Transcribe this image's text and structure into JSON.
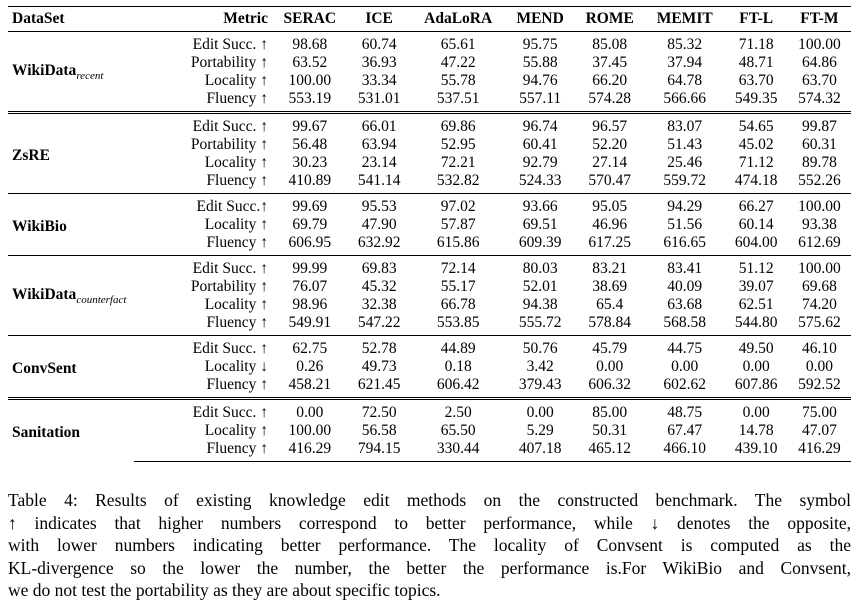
{
  "table": {
    "headers": [
      "DataSet",
      "Metric",
      "SERAC",
      "ICE",
      "AdaLoRA",
      "MEND",
      "ROME",
      "MEMIT",
      "FT-L",
      "FT-M"
    ],
    "groups": [
      {
        "name": "WikiData",
        "subscript": "recent",
        "rows": [
          {
            "metric": "Edit Succ. ↑",
            "values": [
              "98.68",
              "60.74",
              "65.61",
              "95.75",
              "85.08",
              "85.32",
              "71.18",
              "100.00"
            ]
          },
          {
            "metric": "Portability ↑",
            "values": [
              "63.52",
              "36.93",
              "47.22",
              "55.88",
              "37.45",
              "37.94",
              "48.71",
              "64.86"
            ]
          },
          {
            "metric": "Locality ↑",
            "values": [
              "100.00",
              "33.34",
              "55.78",
              "94.76",
              "66.20",
              "64.78",
              "63.70",
              "63.70"
            ]
          },
          {
            "metric": "Fluency ↑",
            "values": [
              "553.19",
              "531.01",
              "537.51",
              "557.11",
              "574.28",
              "566.66",
              "549.35",
              "574.32"
            ]
          }
        ]
      },
      {
        "name": "ZsRE",
        "subscript": "",
        "rows": [
          {
            "metric": "Edit Succ. ↑",
            "values": [
              "99.67",
              "66.01",
              "69.86",
              "96.74",
              "96.57",
              "83.07",
              "54.65",
              "99.87"
            ]
          },
          {
            "metric": "Portability ↑",
            "values": [
              "56.48",
              "63.94",
              "52.95",
              "60.41",
              "52.20",
              "51.43",
              "45.02",
              "60.31"
            ]
          },
          {
            "metric": "Locality ↑",
            "values": [
              "30.23",
              "23.14",
              "72.21",
              "92.79",
              "27.14",
              "25.46",
              "71.12",
              "89.78"
            ]
          },
          {
            "metric": "Fluency ↑",
            "values": [
              "410.89",
              "541.14",
              "532.82",
              "524.33",
              "570.47",
              "559.72",
              "474.18",
              "552.26"
            ]
          }
        ]
      },
      {
        "name": "WikiBio",
        "subscript": "",
        "rows": [
          {
            "metric": "Edit Succ.↑",
            "values": [
              "99.69",
              "95.53",
              "97.02",
              "93.66",
              "95.05",
              "94.29",
              "66.27",
              "100.00"
            ]
          },
          {
            "metric": "Locality ↑",
            "values": [
              "69.79",
              "47.90",
              "57.87",
              "69.51",
              "46.96",
              "51.56",
              "60.14",
              "93.38"
            ]
          },
          {
            "metric": "Fluency ↑",
            "values": [
              "606.95",
              "632.92",
              "615.86",
              "609.39",
              "617.25",
              "616.65",
              "604.00",
              "612.69"
            ]
          }
        ]
      },
      {
        "name": "WikiData",
        "subscript": "counterfact",
        "rows": [
          {
            "metric": "Edit Succ. ↑",
            "values": [
              "99.99",
              "69.83",
              "72.14",
              "80.03",
              "83.21",
              "83.41",
              "51.12",
              "100.00"
            ]
          },
          {
            "metric": "Portability ↑",
            "values": [
              "76.07",
              "45.32",
              "55.17",
              "52.01",
              "38.69",
              "40.09",
              "39.07",
              "69.68"
            ]
          },
          {
            "metric": "Locality ↑",
            "values": [
              "98.96",
              "32.38",
              "66.78",
              "94.38",
              "65.4",
              "63.68",
              "62.51",
              "74.20"
            ]
          },
          {
            "metric": "Fluency ↑",
            "values": [
              "549.91",
              "547.22",
              "553.85",
              "555.72",
              "578.84",
              "568.58",
              "544.80",
              "575.62"
            ]
          }
        ]
      },
      {
        "name": "ConvSent",
        "subscript": "",
        "rows": [
          {
            "metric": "Edit Succ. ↑",
            "values": [
              "62.75",
              "52.78",
              "44.89",
              "50.76",
              "45.79",
              "44.75",
              "49.50",
              "46.10"
            ]
          },
          {
            "metric": "Locality ↓",
            "values": [
              "0.26",
              "49.73",
              "0.18",
              "3.42",
              "0.00",
              "0.00",
              "0.00",
              "0.00"
            ]
          },
          {
            "metric": "Fluency ↑",
            "values": [
              "458.21",
              "621.45",
              "606.42",
              "379.43",
              "606.32",
              "602.62",
              "607.86",
              "592.52"
            ]
          }
        ]
      },
      {
        "name": "Sanitation",
        "subscript": "",
        "rows": [
          {
            "metric": "Edit Succ. ↑",
            "values": [
              "0.00",
              "72.50",
              "2.50",
              "0.00",
              "85.00",
              "48.75",
              "0.00",
              "75.00"
            ]
          },
          {
            "metric": "Locality ↑",
            "values": [
              "100.00",
              "56.58",
              "65.50",
              "5.29",
              "50.31",
              "67.47",
              "14.78",
              "47.07"
            ]
          },
          {
            "metric": "Fluency ↑",
            "values": [
              "416.29",
              "794.15",
              "330.44",
              "407.18",
              "465.12",
              "466.10",
              "439.10",
              "416.29"
            ]
          }
        ]
      }
    ]
  },
  "caption": {
    "lines": [
      "Table 4: Results of existing knowledge edit methods on the constructed benchmark. The symbol",
      "↑ indicates that higher numbers correspond to better performance, while ↓ denotes the opposite,",
      "with lower numbers indicating better performance. The locality of Convsent is computed as the",
      "KL-divergence so the lower the number, the better the performance is.For WikiBio and Convsent,",
      "we do not test the portability as they are about specific topics."
    ]
  }
}
